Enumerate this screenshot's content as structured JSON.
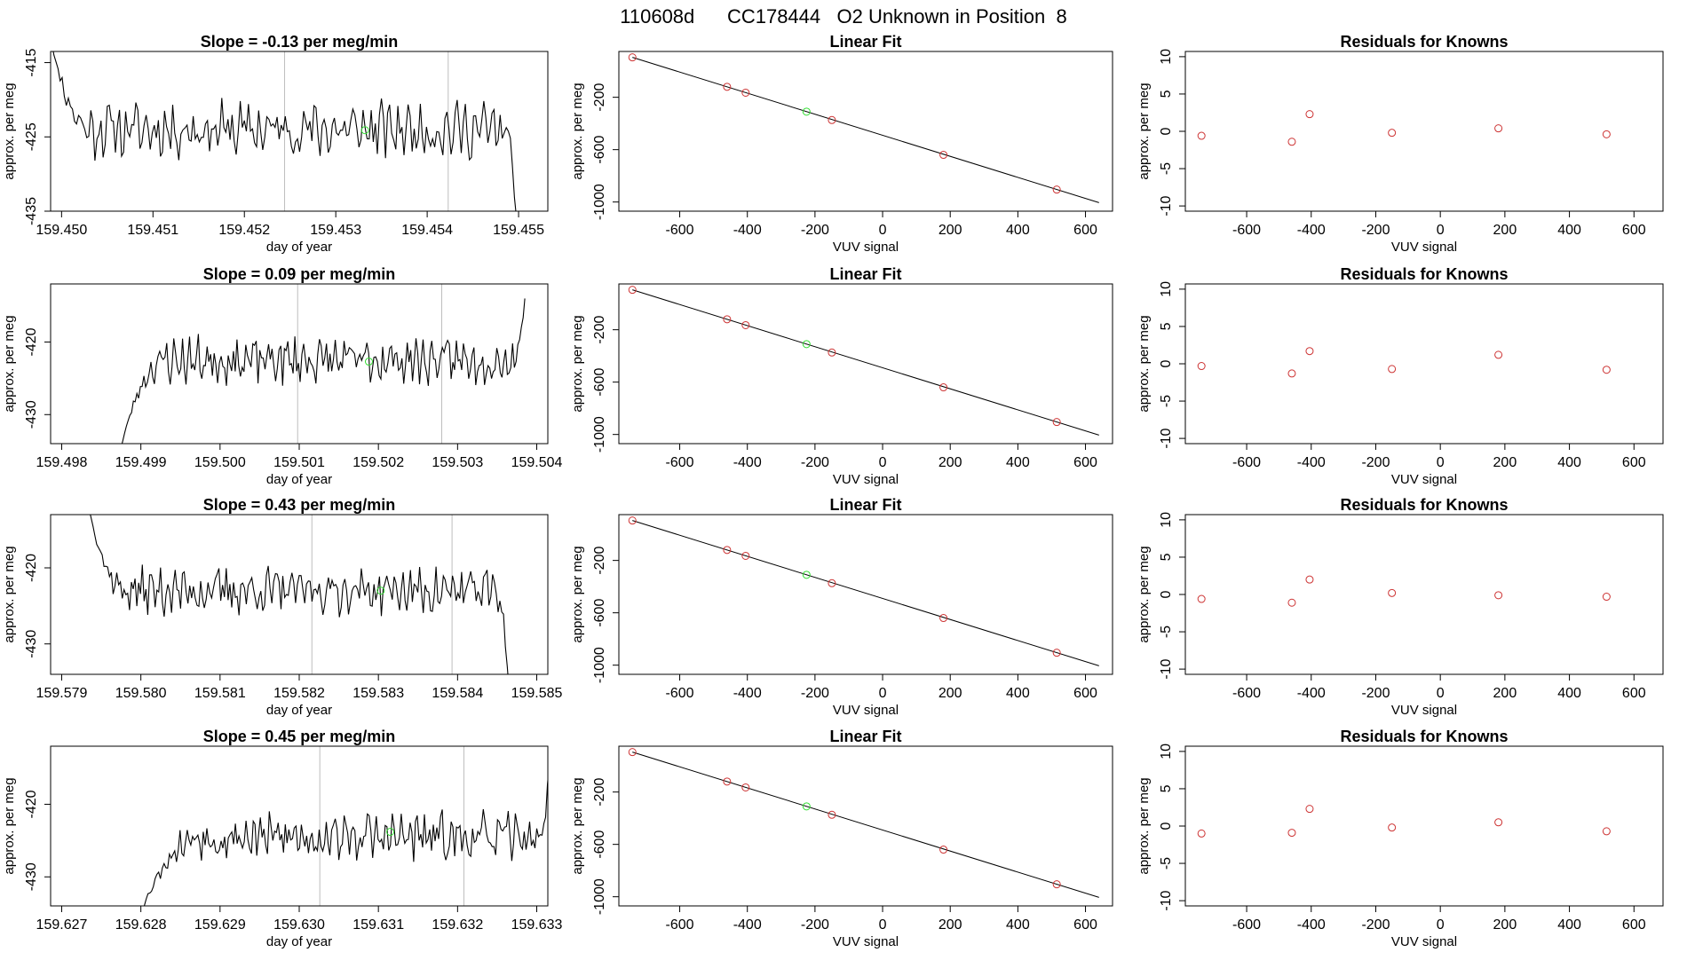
{
  "page_title": "110608d      CC178444   O2 Unknown in Position  8",
  "colors": {
    "line": "#000000",
    "known_point": "#cd3333",
    "unknown_point": "#33dd33",
    "vline": "#bebebe"
  },
  "rows": [
    {
      "ts": {
        "title": "Slope =  -0.13  per meg/min",
        "xlabel": "day of year",
        "ylabel": "approx. per meg",
        "xlim": [
          159.44988,
          159.45532
        ],
        "ylim": [
          -435,
          -413.5
        ],
        "xticks": [
          159.45,
          159.451,
          159.452,
          159.453,
          159.454,
          159.455
        ],
        "xtick_labels": [
          "159.450",
          "159.451",
          "159.452",
          "159.453",
          "159.454",
          "159.455"
        ],
        "yticks": [
          -415,
          -425,
          -435
        ],
        "ytick_labels": [
          "-415",
          "-425",
          "-435"
        ],
        "vlines": [
          159.45244,
          159.45423
        ],
        "base": -424,
        "amp": 2.6,
        "seed": 11,
        "start_val": -410,
        "start_x": 159.44985,
        "settle_x": 159.45035,
        "end_val": -440,
        "end_x": 159.455,
        "mid_x": 159.45332,
        "mid_y": -424.1
      },
      "fit": {
        "title": "Linear Fit",
        "xlabel": "VUV signal",
        "ylabel": "approx. per meg",
        "line": [
          [
            -740,
            105
          ],
          [
            640,
            -1005
          ]
        ],
        "knowns": [
          [
            -740,
            105
          ],
          [
            -460,
            -120
          ],
          [
            -405,
            -165
          ],
          [
            -150,
            -374
          ],
          [
            180,
            -640
          ],
          [
            515,
            -905
          ]
        ],
        "unknown": [
          -225,
          -310
        ]
      },
      "resid": {
        "title": "Residuals for Knowns",
        "xlabel": "VUV signal",
        "ylabel": "approx. per meg",
        "points": [
          [
            -740,
            -0.6
          ],
          [
            -460,
            -1.4
          ],
          [
            -405,
            2.3
          ],
          [
            -150,
            -0.2
          ],
          [
            180,
            0.4
          ],
          [
            515,
            -0.4
          ]
        ]
      }
    },
    {
      "ts": {
        "title": "Slope =  0.09  per meg/min",
        "xlabel": "day of year",
        "ylabel": "approx. per meg",
        "xlim": [
          159.49786,
          159.50414
        ],
        "ylim": [
          -434,
          -412
        ],
        "xticks": [
          159.498,
          159.499,
          159.5,
          159.501,
          159.502,
          159.503,
          159.504
        ],
        "xtick_labels": [
          "159.498",
          "159.499",
          "159.500",
          "159.501",
          "159.502",
          "159.503",
          "159.504"
        ],
        "yticks": [
          -420,
          -430
        ],
        "ytick_labels": [
          "-420",
          "-430"
        ],
        "vlines": [
          159.50098,
          159.5028
        ],
        "base": -422.5,
        "amp": 2.2,
        "seed": 23,
        "start_val": -434.5,
        "start_x": 159.49875,
        "settle_x": 159.49935,
        "end_val": -414,
        "end_x": 159.50385,
        "mid_x": 159.50188,
        "mid_y": -422.7
      },
      "fit": {
        "title": "Linear Fit",
        "xlabel": "VUV signal",
        "ylabel": "approx. per meg",
        "line": [
          [
            -740,
            105
          ],
          [
            640,
            -1005
          ]
        ],
        "knowns": [
          [
            -740,
            105
          ],
          [
            -460,
            -120
          ],
          [
            -405,
            -165
          ],
          [
            -150,
            -374
          ],
          [
            180,
            -640
          ],
          [
            515,
            -905
          ]
        ],
        "unknown": [
          -225,
          -310
        ]
      },
      "resid": {
        "title": "Residuals for Knowns",
        "xlabel": "VUV signal",
        "ylabel": "approx. per meg",
        "points": [
          [
            -740,
            -0.3
          ],
          [
            -460,
            -1.3
          ],
          [
            -405,
            1.7
          ],
          [
            -150,
            -0.7
          ],
          [
            180,
            1.2
          ],
          [
            515,
            -0.8
          ]
        ]
      }
    },
    {
      "ts": {
        "title": "Slope =  0.43  per meg/min",
        "xlabel": "day of year",
        "ylabel": "approx. per meg",
        "xlim": [
          159.57886,
          159.58514
        ],
        "ylim": [
          -434,
          -413
        ],
        "xticks": [
          159.579,
          159.58,
          159.581,
          159.582,
          159.583,
          159.584,
          159.585
        ],
        "xtick_labels": [
          "159.579",
          "159.580",
          "159.581",
          "159.582",
          "159.583",
          "159.584",
          "159.585"
        ],
        "yticks": [
          -420,
          -430
        ],
        "ytick_labels": [
          "-420",
          "-430"
        ],
        "vlines": [
          159.58216,
          159.58393
        ],
        "base": -423,
        "amp": 2.1,
        "seed": 37,
        "start_val": -412.5,
        "start_x": 159.57935,
        "settle_x": 159.57985,
        "end_val": -436,
        "end_x": 159.58465,
        "mid_x": 159.58303,
        "mid_y": -423.0
      },
      "fit": {
        "title": "Linear Fit",
        "xlabel": "VUV signal",
        "ylabel": "approx. per meg",
        "line": [
          [
            -740,
            105
          ],
          [
            640,
            -1005
          ]
        ],
        "knowns": [
          [
            -740,
            105
          ],
          [
            -460,
            -120
          ],
          [
            -405,
            -165
          ],
          [
            -150,
            -374
          ],
          [
            180,
            -640
          ],
          [
            515,
            -905
          ]
        ],
        "unknown": [
          -225,
          -310
        ]
      },
      "resid": {
        "title": "Residuals for Knowns",
        "xlabel": "VUV signal",
        "ylabel": "approx. per meg",
        "points": [
          [
            -740,
            -0.6
          ],
          [
            -460,
            -1.1
          ],
          [
            -405,
            2.0
          ],
          [
            -150,
            0.2
          ],
          [
            180,
            -0.1
          ],
          [
            515,
            -0.3
          ]
        ]
      }
    },
    {
      "ts": {
        "title": "Slope =  0.45  per meg/min",
        "xlabel": "day of year",
        "ylabel": "approx. per meg",
        "xlim": [
          159.62686,
          159.63314
        ],
        "ylim": [
          -434,
          -412
        ],
        "xticks": [
          159.627,
          159.628,
          159.629,
          159.63,
          159.631,
          159.632,
          159.633
        ],
        "xtick_labels": [
          "159.627",
          "159.628",
          "159.629",
          "159.630",
          "159.631",
          "159.632",
          "159.633"
        ],
        "yticks": [
          -420,
          -430
        ],
        "ytick_labels": [
          "-420",
          "-430"
        ],
        "vlines": [
          159.63026,
          159.63208
        ],
        "base": -424.5,
        "amp": 2.3,
        "seed": 53,
        "start_val": -435,
        "start_x": 159.628,
        "settle_x": 159.6288,
        "end_val": -412,
        "end_x": 159.63318,
        "mid_x": 159.63115,
        "mid_y": -423.8
      },
      "fit": {
        "title": "Linear Fit",
        "xlabel": "VUV signal",
        "ylabel": "approx. per meg",
        "line": [
          [
            -740,
            105
          ],
          [
            640,
            -1005
          ]
        ],
        "knowns": [
          [
            -740,
            105
          ],
          [
            -460,
            -120
          ],
          [
            -405,
            -165
          ],
          [
            -150,
            -374
          ],
          [
            180,
            -640
          ],
          [
            515,
            -905
          ]
        ],
        "unknown": [
          -225,
          -310
        ]
      },
      "resid": {
        "title": "Residuals for Knowns",
        "xlabel": "VUV signal",
        "ylabel": "approx. per meg",
        "points": [
          [
            -740,
            -1.0
          ],
          [
            -460,
            -0.9
          ],
          [
            -405,
            2.3
          ],
          [
            -150,
            -0.2
          ],
          [
            180,
            0.5
          ],
          [
            515,
            -0.7
          ]
        ]
      }
    }
  ],
  "fit_axes": {
    "xlim": [
      -780,
      680
    ],
    "ylim": [
      -1070,
      150
    ],
    "xticks": [
      -600,
      -400,
      -200,
      0,
      200,
      400,
      600
    ],
    "xtick_labels": [
      "-600",
      "-400",
      "-200",
      "0",
      "200",
      "400",
      "600"
    ],
    "yticks": [
      -200,
      -600,
      -1000
    ],
    "ytick_labels": [
      "-200",
      "-600",
      "-1000"
    ]
  },
  "resid_axes": {
    "xlim": [
      -790,
      690
    ],
    "ylim": [
      -10.7,
      10.7
    ],
    "xticks": [
      -600,
      -400,
      -200,
      0,
      200,
      400,
      600
    ],
    "xtick_labels": [
      "-600",
      "-400",
      "-200",
      "0",
      "200",
      "400",
      "600"
    ],
    "yticks": [
      10,
      5,
      0,
      -5,
      -10
    ],
    "ytick_labels": [
      "10",
      "5",
      "0",
      "-5",
      "-10"
    ]
  },
  "chart_data": [
    {
      "type": "line",
      "panel": "row1-timeseries",
      "title": "Slope =  -0.13  per meg/min",
      "xlabel": "day of year",
      "ylabel": "approx. per meg",
      "xlim": [
        159.44988,
        159.45532
      ],
      "ylim": [
        -435,
        -413.5
      ]
    },
    {
      "type": "scatter",
      "panel": "row1-linear-fit",
      "title": "Linear Fit",
      "xlabel": "VUV signal",
      "ylabel": "approx. per meg",
      "x": [
        -740,
        -460,
        -405,
        -150,
        180,
        515
      ],
      "y": [
        105,
        -120,
        -165,
        -374,
        -640,
        -905
      ]
    },
    {
      "type": "scatter",
      "panel": "row1-residuals",
      "title": "Residuals for Knowns",
      "xlabel": "VUV signal",
      "ylabel": "approx. per meg",
      "x": [
        -740,
        -460,
        -405,
        -150,
        180,
        515
      ],
      "y": [
        -0.6,
        -1.4,
        2.3,
        -0.2,
        0.4,
        -0.4
      ]
    },
    {
      "type": "line",
      "panel": "row2-timeseries",
      "title": "Slope =  0.09  per meg/min",
      "xlabel": "day of year",
      "ylabel": "approx. per meg",
      "xlim": [
        159.49786,
        159.50414
      ],
      "ylim": [
        -434,
        -412
      ]
    },
    {
      "type": "scatter",
      "panel": "row2-linear-fit",
      "title": "Linear Fit",
      "xlabel": "VUV signal",
      "ylabel": "approx. per meg",
      "x": [
        -740,
        -460,
        -405,
        -150,
        180,
        515
      ],
      "y": [
        105,
        -120,
        -165,
        -374,
        -640,
        -905
      ]
    },
    {
      "type": "scatter",
      "panel": "row2-residuals",
      "title": "Residuals for Knowns",
      "xlabel": "VUV signal",
      "ylabel": "approx. per meg",
      "x": [
        -740,
        -460,
        -405,
        -150,
        180,
        515
      ],
      "y": [
        -0.3,
        -1.3,
        1.7,
        -0.7,
        1.2,
        -0.8
      ]
    },
    {
      "type": "line",
      "panel": "row3-timeseries",
      "title": "Slope =  0.43  per meg/min",
      "xlabel": "day of year",
      "ylabel": "approx. per meg",
      "xlim": [
        159.57886,
        159.58514
      ],
      "ylim": [
        -434,
        -413
      ]
    },
    {
      "type": "scatter",
      "panel": "row3-linear-fit",
      "title": "Linear Fit",
      "xlabel": "VUV signal",
      "ylabel": "approx. per meg",
      "x": [
        -740,
        -460,
        -405,
        -150,
        180,
        515
      ],
      "y": [
        105,
        -120,
        -165,
        -374,
        -640,
        -905
      ]
    },
    {
      "type": "scatter",
      "panel": "row3-residuals",
      "title": "Residuals for Knowns",
      "xlabel": "VUV signal",
      "ylabel": "approx. per meg",
      "x": [
        -740,
        -460,
        -405,
        -150,
        180,
        515
      ],
      "y": [
        -0.6,
        -1.1,
        2.0,
        0.2,
        -0.1,
        -0.3
      ]
    },
    {
      "type": "line",
      "panel": "row4-timeseries",
      "title": "Slope =  0.45  per meg/min",
      "xlabel": "day of year",
      "ylabel": "approx. per meg",
      "xlim": [
        159.62686,
        159.63314
      ],
      "ylim": [
        -434,
        -412
      ]
    },
    {
      "type": "scatter",
      "panel": "row4-linear-fit",
      "title": "Linear Fit",
      "xlabel": "VUV signal",
      "ylabel": "approx. per meg",
      "x": [
        -740,
        -460,
        -405,
        -150,
        180,
        515
      ],
      "y": [
        105,
        -120,
        -165,
        -374,
        -640,
        -905
      ]
    },
    {
      "type": "scatter",
      "panel": "row4-residuals",
      "title": "Residuals for Knowns",
      "xlabel": "VUV signal",
      "ylabel": "approx. per meg",
      "x": [
        -740,
        -460,
        -405,
        -150,
        180,
        515
      ],
      "y": [
        -1.0,
        -0.9,
        2.3,
        -0.2,
        0.5,
        -0.7
      ]
    }
  ]
}
